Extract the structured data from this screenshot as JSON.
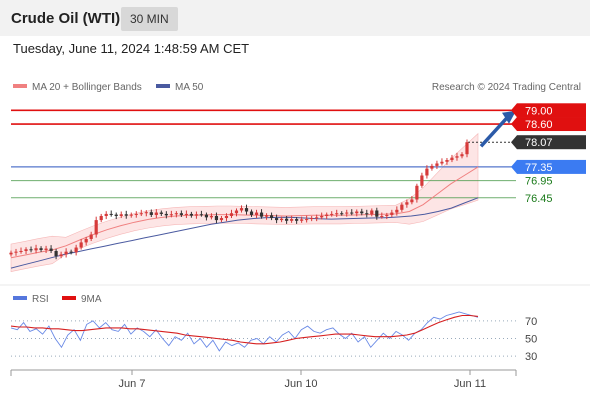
{
  "header": {
    "title": "Crude Oil (WTI)",
    "timeframe": "30 MIN"
  },
  "datetime": "Tuesday, June 11, 2024 1:48:59 AM CET",
  "legend": {
    "ma20": "MA 20 + Bollinger Bands",
    "ma50": "MA 50",
    "credit": "Research © 2024 Trading Central"
  },
  "rsi_legend": {
    "rsi": "RSI",
    "ma": "9MA"
  },
  "colors": {
    "resistance": "#e01010",
    "pivot": "#5577cc",
    "support": "#4a9a4a",
    "price": "#333333",
    "arrow": "#2b5aa8",
    "band": "#fde5e5",
    "ma20": "#f08080",
    "ma50": "#4a5aa0"
  },
  "chart_data": [
    {
      "type": "line",
      "title": "Crude Oil (WTI) 30 MIN",
      "x_ticks": [
        "Jun 7",
        "Jun 10",
        "Jun 11"
      ],
      "ylim": [
        74.2,
        79.3
      ],
      "levels": [
        {
          "label": "79.00",
          "value": 79.0,
          "kind": "resistance"
        },
        {
          "label": "78.60",
          "value": 78.6,
          "kind": "resistance"
        },
        {
          "label": "78.07",
          "value": 78.07,
          "kind": "price"
        },
        {
          "label": "77.35",
          "value": 77.35,
          "kind": "pivot"
        },
        {
          "label": "76.95",
          "value": 76.95,
          "kind": "support"
        },
        {
          "label": "76.45",
          "value": 76.45,
          "kind": "support"
        }
      ],
      "price_close": [
        74.85,
        74.88,
        74.9,
        74.95,
        74.92,
        74.98,
        74.93,
        74.97,
        74.9,
        74.75,
        74.8,
        74.88,
        74.86,
        75.0,
        75.15,
        75.25,
        75.38,
        75.8,
        75.92,
        75.98,
        75.96,
        75.92,
        75.97,
        75.93,
        75.96,
        75.98,
        76.0,
        76.03,
        75.95,
        76.02,
        75.98,
        75.94,
        75.97,
        76.0,
        75.95,
        75.98,
        75.93,
        75.97,
        75.96,
        75.88,
        75.92,
        75.8,
        75.86,
        75.92,
        76.0,
        76.08,
        76.15,
        76.05,
        75.95,
        76.02,
        75.9,
        75.94,
        75.86,
        75.8,
        75.84,
        75.78,
        75.83,
        75.78,
        75.82,
        75.83,
        75.86,
        75.88,
        75.92,
        75.96,
        75.98,
        76.0,
        75.99,
        76.02,
        76.0,
        76.05,
        76.0,
        75.97,
        76.08,
        75.9,
        75.92,
        75.95,
        76.02,
        76.1,
        76.25,
        76.32,
        76.4,
        76.8,
        77.1,
        77.3,
        77.38,
        77.45,
        77.5,
        77.55,
        77.62,
        77.66,
        77.72,
        78.07
      ],
      "series": [
        {
          "name": "MA 20",
          "values": [
            74.7,
            74.78,
            74.86,
            74.93,
            75.05,
            75.22,
            75.38,
            75.52,
            75.64,
            75.74,
            75.82,
            75.88,
            75.92,
            75.94,
            75.95,
            75.96,
            75.96,
            75.95,
            75.94,
            75.93,
            75.92,
            75.93,
            75.94,
            75.94,
            75.94,
            75.95,
            75.96,
            75.97,
            75.98,
            76.05,
            76.25,
            76.55,
            76.85,
            77.1,
            77.35
          ]
        },
        {
          "name": "MA 50",
          "values": [
            74.4,
            74.5,
            74.6,
            74.7,
            74.8,
            74.88,
            74.96,
            75.04,
            75.12,
            75.2,
            75.28,
            75.36,
            75.44,
            75.52,
            75.6,
            75.68,
            75.74,
            75.8,
            75.84,
            75.87,
            75.88,
            75.88,
            75.86,
            75.84,
            75.83,
            75.84,
            75.85,
            75.86,
            75.87,
            75.89,
            75.92,
            75.97,
            76.05,
            76.15,
            76.3,
            76.45
          ]
        }
      ]
    },
    {
      "type": "line",
      "title": "RSI",
      "yticks": [
        70,
        50,
        30
      ],
      "ylim": [
        20,
        80
      ],
      "series": [
        {
          "name": "RSI",
          "values": [
            62,
            60,
            68,
            58,
            61,
            55,
            64,
            50,
            40,
            54,
            60,
            48,
            66,
            70,
            62,
            68,
            60,
            58,
            66,
            55,
            62,
            58,
            52,
            60,
            50,
            42,
            52,
            48,
            56,
            44,
            50,
            40,
            48,
            36,
            46,
            42,
            45,
            40,
            48,
            50,
            44,
            52,
            46,
            54,
            58,
            50,
            60,
            64,
            58,
            56,
            60,
            62,
            55,
            50,
            56,
            46,
            52,
            40,
            48,
            56,
            50,
            58,
            54,
            48,
            56,
            60,
            68,
            74,
            72,
            76,
            78,
            80,
            78,
            76,
            74
          ]
        },
        {
          "name": "9MA",
          "values": [
            64,
            63,
            63,
            62,
            62,
            61,
            61,
            60,
            59,
            59,
            60,
            61,
            62,
            62,
            62,
            61,
            61,
            60,
            59,
            58,
            57,
            56,
            54,
            53,
            52,
            51,
            50,
            49,
            48,
            46,
            45,
            44,
            44,
            45,
            46,
            48,
            50,
            51,
            52,
            53,
            54,
            55,
            55,
            55,
            54,
            53,
            52,
            52,
            52,
            53,
            54,
            56,
            60,
            64,
            68,
            71,
            74,
            76,
            76,
            75
          ]
        }
      ]
    }
  ]
}
